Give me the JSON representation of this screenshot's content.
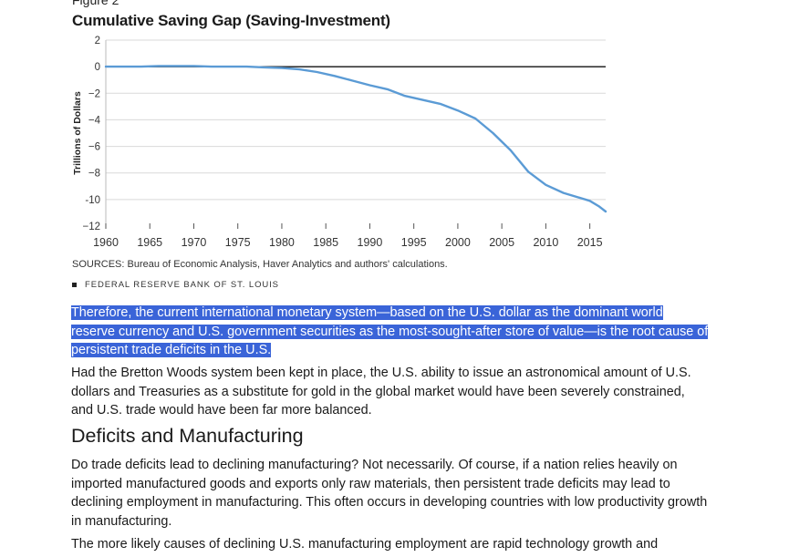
{
  "figure": {
    "label": "Figure 2",
    "title": "Cumulative Saving Gap (Saving-Investment)",
    "sources": "SOURCES: Bureau of Economic Analysis, Haver Analytics and authors' calculations.",
    "credit": "FEDERAL RESERVE BANK OF ST. LOUIS"
  },
  "chart_data": {
    "type": "line",
    "title": "Cumulative Saving Gap (Saving-Investment)",
    "xlabel": "",
    "ylabel": "Trillions of Dollars",
    "xlim": [
      1960,
      2016.8
    ],
    "ylim": [
      -12,
      2
    ],
    "x_ticks": [
      1960,
      1965,
      1970,
      1975,
      1980,
      1985,
      1990,
      1995,
      2000,
      2005,
      2010,
      2015
    ],
    "y_ticks": [
      2,
      0,
      -2,
      -4,
      -6,
      -8,
      -10,
      -12
    ],
    "y_tick_labels": [
      "2",
      "0",
      "−2",
      "−4",
      "−6",
      "−8",
      "-10",
      "−12"
    ],
    "grid": "horizontal",
    "zero_line": true,
    "line_color": "#5b9bd5",
    "series": [
      {
        "name": "",
        "x": [
          1960,
          1962,
          1964,
          1966,
          1968,
          1970,
          1972,
          1974,
          1976,
          1978,
          1980,
          1982,
          1984,
          1986,
          1988,
          1990,
          1992,
          1994,
          1996,
          1998,
          2000,
          2002,
          2004,
          2006,
          2008,
          2010,
          2012,
          2014,
          2015,
          2016,
          2016.8
        ],
        "y": [
          0,
          0,
          0,
          0.05,
          0.05,
          0.05,
          0,
          0,
          0,
          -0.05,
          -0.1,
          -0.2,
          -0.4,
          -0.7,
          -1.05,
          -1.4,
          -1.7,
          -2.2,
          -2.5,
          -2.8,
          -3.3,
          -3.9,
          -5.0,
          -6.3,
          -7.9,
          -8.9,
          -9.5,
          -9.9,
          -10.1,
          -10.5,
          -10.9
        ]
      }
    ]
  },
  "article": {
    "highlighted_paragraph": "Therefore, the current international monetary system—based on the U.S. dollar as the dominant world reserve currency and U.S. government securities as the most-sought-after store of value—is the root cause of persistent trade deficits in the U.S.",
    "paragraph_2": "Had the Bretton Woods system been kept in place, the U.S. ability to issue an astronomical amount of U.S. dollars and Treasuries as a substitute for gold in the global market would have been severely constrained, and U.S. trade would have been far more balanced.",
    "heading": "Deficits and Manufacturing",
    "paragraph_3": "Do trade deficits lead to declining manufacturing? Not necessarily. Of course, if a nation relies heavily on imported manufactured goods and exports only raw materials, then persistent trade deficits may lead to declining employment in manufacturing. This often occurs in developing countries with low productivity growth in manufacturing.",
    "paragraph_4": "The more likely causes of declining U.S. manufacturing employment are rapid technology growth and"
  }
}
